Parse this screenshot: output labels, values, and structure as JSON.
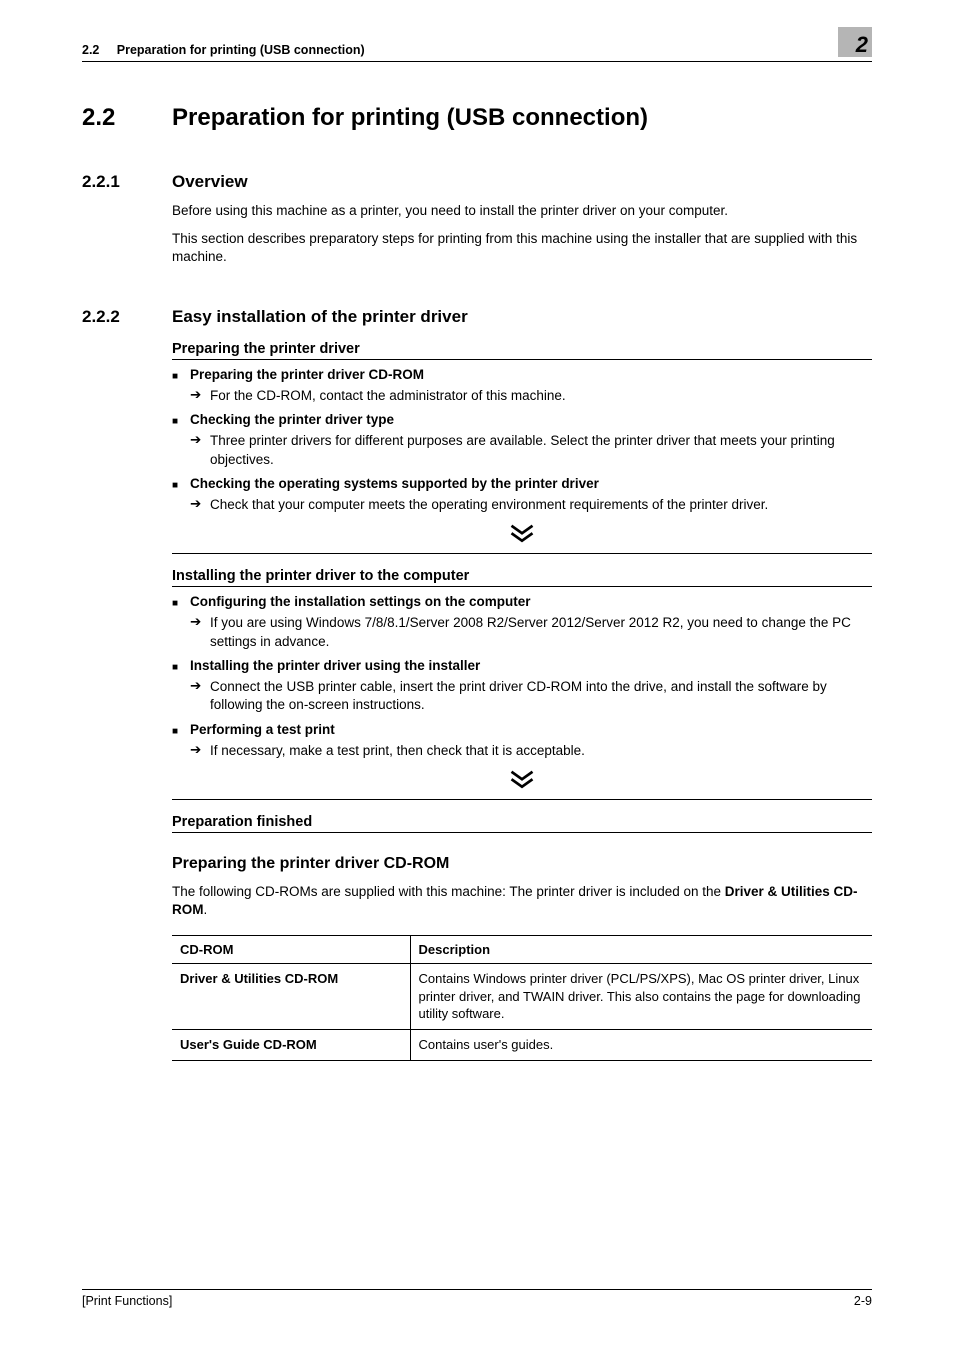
{
  "header": {
    "section_ref": "2.2",
    "section_title": "Preparation for printing (USB connection)",
    "chapter_number": "2"
  },
  "h1": {
    "num": "2.2",
    "title": "Preparation for printing (USB connection)"
  },
  "overview": {
    "num": "2.2.1",
    "title": "Overview",
    "p1": "Before using this machine as a printer, you need to install the printer driver on your computer.",
    "p2": "This section describes preparatory steps for printing from this machine using the installer that are supplied with this machine."
  },
  "easy": {
    "num": "2.2.2",
    "title": "Easy installation of the printer driver",
    "block1": {
      "title": "Preparing the printer driver",
      "items": [
        {
          "head": "Preparing the printer driver CD-ROM",
          "sub": "For the CD-ROM, contact the administrator of this machine."
        },
        {
          "head": "Checking the printer driver type",
          "sub": "Three printer drivers for different purposes are available. Select the printer driver that meets your printing objectives."
        },
        {
          "head": "Checking the operating systems supported by the printer driver",
          "sub": "Check that your computer meets the operating environment requirements of the printer driver."
        }
      ]
    },
    "block2": {
      "title": "Installing the printer driver to the computer",
      "items": [
        {
          "head": "Configuring the installation settings on the computer",
          "sub": "If you are using Windows 7/8/8.1/Server 2008 R2/Server 2012/Server 2012 R2, you need to change the PC settings in advance."
        },
        {
          "head": "Installing the printer driver using the installer",
          "sub": "Connect the USB printer cable, insert the print driver CD-ROM into the drive, and install the software by following the on-screen instructions."
        },
        {
          "head": "Performing a test print",
          "sub": "If necessary, make a test print, then check that it is acceptable."
        }
      ]
    },
    "block3": {
      "title": "Preparation finished"
    }
  },
  "cdrom_section": {
    "title": "Preparing the printer driver CD-ROM",
    "intro_pre": "The following CD-ROMs are supplied with this machine: The printer driver is included on the ",
    "intro_bold": "Driver & Utilities CD-ROM",
    "intro_post": ".",
    "table": {
      "col1": "CD-ROM",
      "col2": "Description",
      "rows": [
        {
          "name": "Driver & Utilities CD-ROM",
          "desc": "Contains Windows printer driver (PCL/PS/XPS), Mac OS printer driver, Linux printer driver, and TWAIN driver. This also contains the page for downloading utility software."
        },
        {
          "name": "User's Guide CD-ROM",
          "desc": "Contains user's guides."
        }
      ]
    }
  },
  "footer": {
    "left": "[Print Functions]",
    "right": "2-9"
  },
  "style": {
    "arrow_glyph": "➔",
    "chevron_stroke": "#000000",
    "chevron_stroke_width": 3
  }
}
